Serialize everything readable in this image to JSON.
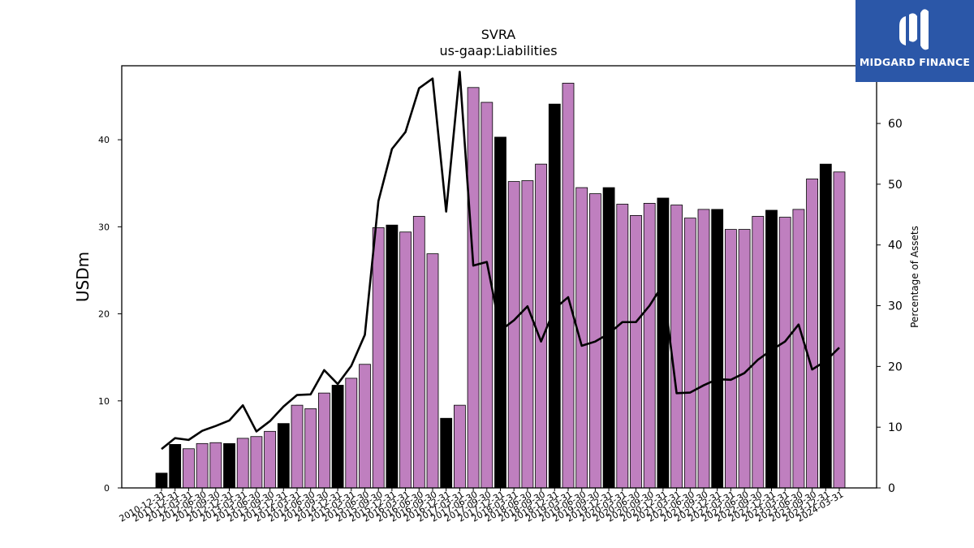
{
  "chart_data": {
    "type": "bar",
    "title": "SVRA",
    "subtitle": "us-gaap:Liabilities",
    "ylabel": "USDm",
    "y2label": "Percentage of Assets",
    "ylim": [
      0,
      48.5
    ],
    "y2lim": [
      0,
      69.5
    ],
    "yticks": [
      0,
      10,
      20,
      30,
      40
    ],
    "y2ticks": [
      0,
      10,
      20,
      30,
      40,
      50,
      60
    ],
    "categories": [
      "2010-12-31",
      "2011-12-31",
      "2012-03-31",
      "2012-06-30",
      "2012-09-30",
      "2012-12-31",
      "2013-03-31",
      "2013-06-30",
      "2013-09-30",
      "2013-12-31",
      "2014-03-31",
      "2014-06-30",
      "2014-09-30",
      "2014-12-31",
      "2015-03-31",
      "2015-06-30",
      "2015-09-30",
      "2015-12-31",
      "2016-03-31",
      "2016-06-30",
      "2016-09-30",
      "2016-12-31",
      "2017-03-31",
      "2017-06-30",
      "2017-09-30",
      "2017-12-31",
      "2018-03-31",
      "2018-06-30",
      "2018-09-30",
      "2018-12-31",
      "2019-03-31",
      "2019-06-30",
      "2019-09-30",
      "2019-12-31",
      "2020-03-31",
      "2020-06-30",
      "2020-09-30",
      "2020-12-31",
      "2021-03-31",
      "2021-06-30",
      "2021-09-30",
      "2021-12-31",
      "2022-03-31",
      "2022-06-30",
      "2022-09-30",
      "2022-12-31",
      "2023-03-31",
      "2023-06-30",
      "2023-09-30",
      "2023-12-31",
      "2024-03-31"
    ],
    "annual_flags": [
      1,
      1,
      0,
      0,
      0,
      1,
      0,
      0,
      0,
      1,
      0,
      0,
      0,
      1,
      0,
      0,
      0,
      1,
      0,
      0,
      0,
      1,
      0,
      0,
      0,
      1,
      0,
      0,
      0,
      1,
      0,
      0,
      0,
      1,
      0,
      0,
      0,
      1,
      0,
      0,
      0,
      1,
      0,
      0,
      0,
      1,
      0,
      0,
      0,
      1,
      0
    ],
    "series": [
      {
        "values": [
          1.7,
          5.0,
          4.5,
          5.1,
          5.2,
          5.1,
          5.7,
          5.9,
          6.5,
          7.4,
          9.5,
          9.1,
          10.9,
          11.8,
          12.6,
          14.2,
          29.9,
          30.2,
          29.4,
          31.2,
          26.9,
          8.0,
          9.5,
          46.0,
          44.3,
          40.3,
          35.2,
          35.3,
          37.2,
          44.1,
          46.5,
          34.5,
          33.8,
          34.5,
          32.6,
          31.3,
          32.7,
          33.3,
          32.5,
          31.0,
          32.0,
          32.0,
          29.7,
          29.7,
          31.2,
          31.9,
          31.1,
          32.0,
          35.5,
          37.2,
          36.3
        ]
      },
      {
        "axis": "right",
        "type": "line",
        "values": [
          6.4,
          8.2,
          7.9,
          9.4,
          10.2,
          11.1,
          13.6,
          9.3,
          11.0,
          13.4,
          15.3,
          15.4,
          19.4,
          17.1,
          20.1,
          25.2,
          47.2,
          55.8,
          58.6,
          65.8,
          67.4,
          45.5,
          68.5,
          36.6,
          37.2,
          25.9,
          27.6,
          29.9,
          24.1,
          29.5,
          31.4,
          23.4,
          24.1,
          25.4,
          27.3,
          27.3,
          30.0,
          33.5,
          15.6,
          15.7,
          16.9,
          17.9,
          17.8,
          18.9,
          21.1,
          22.7,
          24.1,
          26.9,
          19.5,
          20.9,
          23.1
        ]
      }
    ],
    "colors": {
      "bar_quarterly": "#bf7fbf",
      "bar_annual": "#000000",
      "line": "#000000"
    }
  },
  "logo": {
    "text": "MIDGARD FINANCE",
    "color": "#2b57a8"
  }
}
